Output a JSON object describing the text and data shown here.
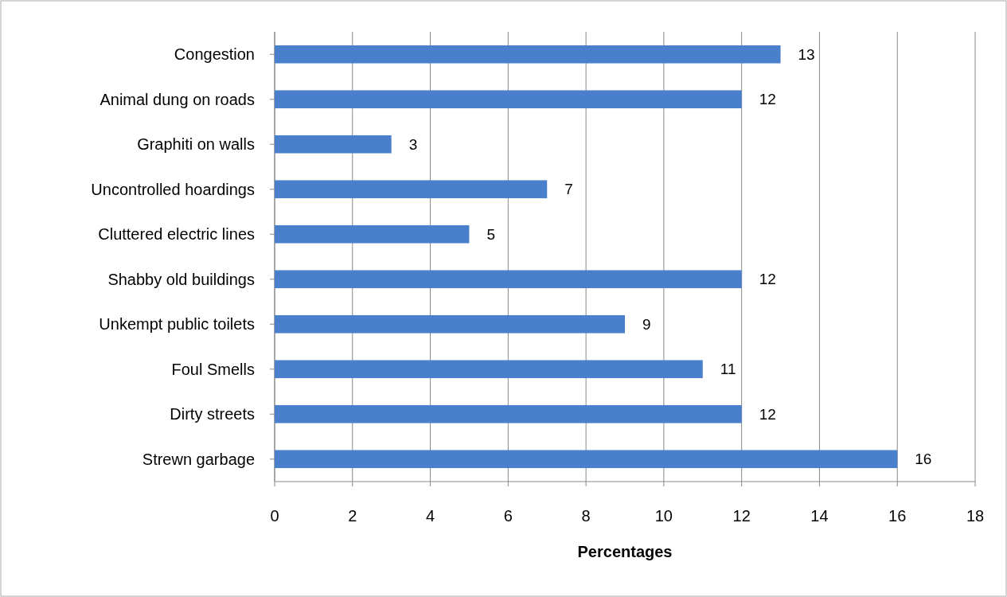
{
  "chart_data": {
    "type": "bar",
    "orientation": "horizontal",
    "xlabel": "Percentages",
    "categories": [
      "Congestion",
      "Animal dung on roads",
      "Graphiti on walls",
      "Uncontrolled hoardings",
      "Cluttered electric lines",
      "Shabby old buildings",
      "Unkempt public toilets",
      "Foul Smells",
      "Dirty streets",
      "Strewn garbage"
    ],
    "values": [
      13,
      12,
      3,
      7,
      5,
      12,
      9,
      11,
      12,
      16
    ],
    "color": "#4a7fcc",
    "xlim": [
      0,
      18
    ],
    "xticks": [
      0,
      2,
      4,
      6,
      8,
      10,
      12,
      14,
      16,
      18
    ],
    "grid": "x",
    "data_labels": true
  }
}
